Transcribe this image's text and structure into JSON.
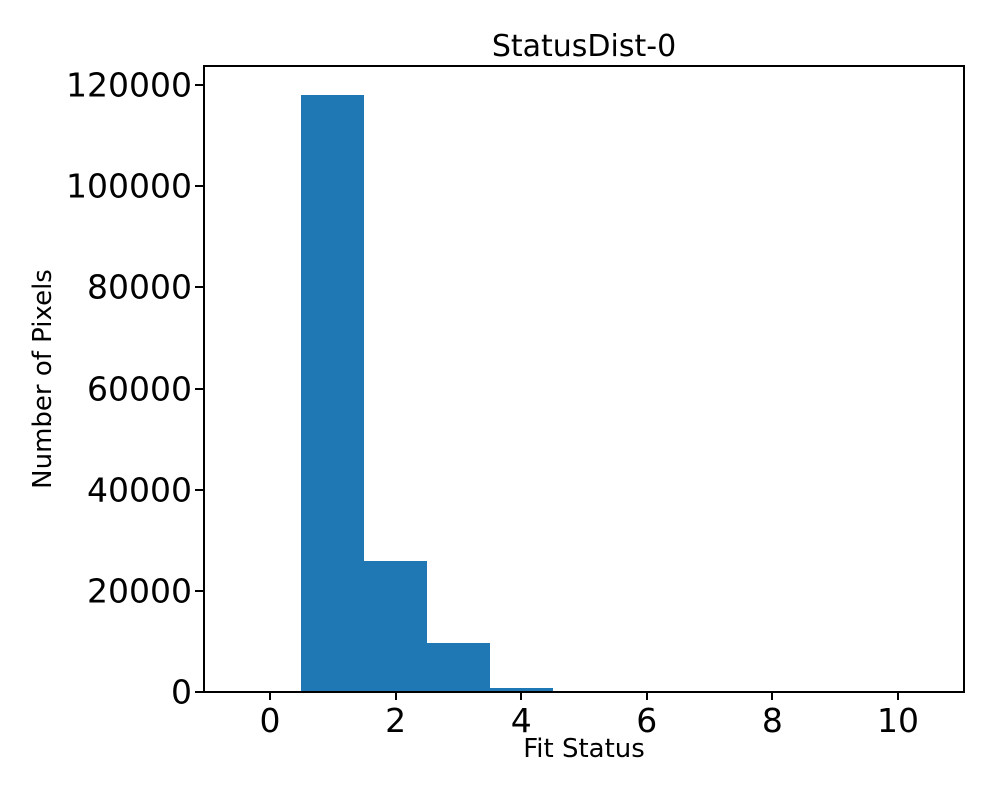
{
  "chart_data": {
    "type": "bar",
    "title": "StatusDist-0",
    "xlabel": "Fit Status",
    "ylabel": "Number of Pixels",
    "bar_color": "#1f77b4",
    "bin_edges": [
      -0.5,
      0.5,
      1.5,
      2.5,
      3.5,
      4.5,
      5.5,
      6.5,
      7.5,
      8.5,
      9.5,
      10.5
    ],
    "categories": [
      0,
      1,
      2,
      3,
      4,
      5,
      6,
      7,
      8,
      9,
      10
    ],
    "values": [
      0,
      118000,
      25900,
      9700,
      800,
      0,
      0,
      0,
      0,
      0,
      0
    ],
    "xticks": [
      0,
      2,
      4,
      6,
      8,
      10
    ],
    "yticks": [
      0,
      20000,
      40000,
      60000,
      80000,
      100000,
      120000
    ],
    "xlim": [
      -1.05,
      11.05
    ],
    "ylim": [
      0,
      123750
    ],
    "grid": false,
    "legend_position": "none"
  }
}
